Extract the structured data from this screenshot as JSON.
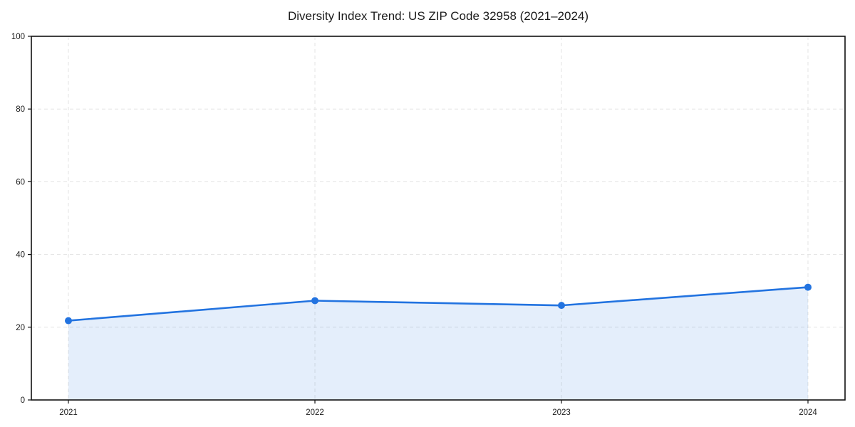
{
  "page": {
    "background": "#ffffff"
  },
  "chart_data": {
    "type": "line",
    "title": "Diversity Index Trend: US ZIP Code 32958 (2021–2024)",
    "x": [
      "2021",
      "2022",
      "2023",
      "2024"
    ],
    "series": [
      {
        "name": "Diversity Index",
        "values": [
          21.8,
          27.3,
          26.0,
          31.0
        ]
      }
    ],
    "xlabel": "",
    "ylabel": "",
    "ylim": [
      0,
      100
    ],
    "yticks": [
      0,
      20,
      40,
      60,
      80,
      100
    ],
    "grid": true,
    "grid_style": "dashed",
    "legend_position": "none",
    "area_fill": true,
    "colors": {
      "line": "#2273e0",
      "marker": "#2273e0",
      "fill": "rgba(34, 115, 224, 0.12)",
      "grid": "#e3e3e3",
      "spine": "#111111",
      "text": "#1a1a1a"
    }
  }
}
